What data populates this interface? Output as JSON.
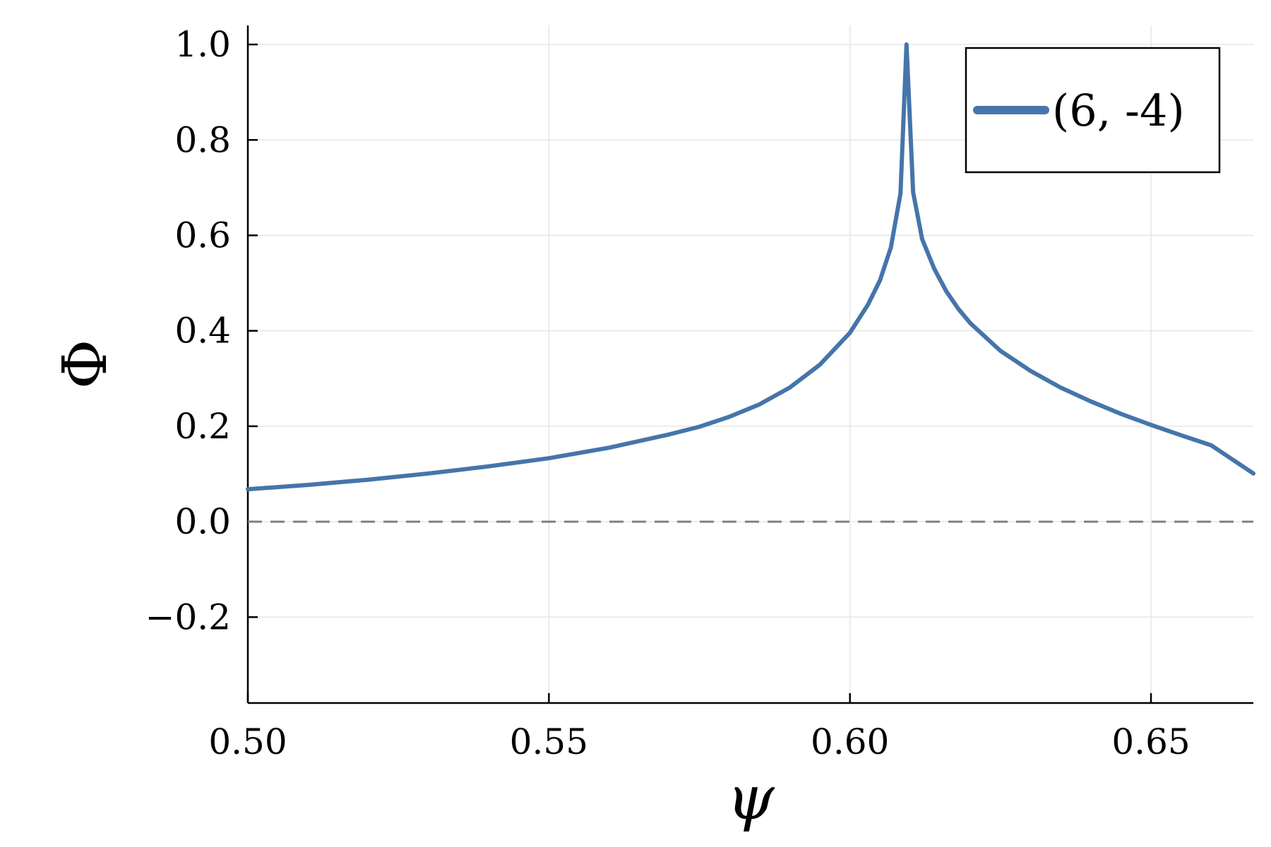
{
  "chart_data": {
    "type": "line",
    "title": "",
    "xlabel": "ψ",
    "ylabel": "Φ",
    "xlim": [
      0.5,
      0.667
    ],
    "ylim": [
      -0.38,
      1.04
    ],
    "x_ticks": [
      {
        "value": 0.5,
        "label": "0.50"
      },
      {
        "value": 0.55,
        "label": "0.55"
      },
      {
        "value": 0.6,
        "label": "0.60"
      },
      {
        "value": 0.65,
        "label": "0.65"
      }
    ],
    "y_ticks": [
      {
        "value": -0.2,
        "label": "−0.2"
      },
      {
        "value": 0.0,
        "label": "0.0"
      },
      {
        "value": 0.2,
        "label": "0.2"
      },
      {
        "value": 0.4,
        "label": "0.4"
      },
      {
        "value": 0.6,
        "label": "0.6"
      },
      {
        "value": 0.8,
        "label": "0.8"
      },
      {
        "value": 1.0,
        "label": "1.0"
      }
    ],
    "grid": true,
    "legend_position": "top-right",
    "reference_line": {
      "y": 0.0,
      "style": "dashed",
      "color": "#808080"
    },
    "series": [
      {
        "name": "(6, -4)",
        "color": "#4575aa",
        "points": [
          [
            0.5,
            0.068
          ],
          [
            0.51,
            0.077
          ],
          [
            0.52,
            0.088
          ],
          [
            0.53,
            0.101
          ],
          [
            0.54,
            0.116
          ],
          [
            0.55,
            0.133
          ],
          [
            0.56,
            0.155
          ],
          [
            0.57,
            0.183
          ],
          [
            0.575,
            0.199
          ],
          [
            0.58,
            0.22
          ],
          [
            0.585,
            0.246
          ],
          [
            0.59,
            0.281
          ],
          [
            0.595,
            0.329
          ],
          [
            0.6,
            0.396
          ],
          [
            0.603,
            0.455
          ],
          [
            0.605,
            0.506
          ],
          [
            0.6068,
            0.575
          ],
          [
            0.6084,
            0.688
          ],
          [
            0.6094,
            1.0
          ],
          [
            0.6105,
            0.69
          ],
          [
            0.612,
            0.592
          ],
          [
            0.614,
            0.53
          ],
          [
            0.616,
            0.483
          ],
          [
            0.618,
            0.446
          ],
          [
            0.62,
            0.416
          ],
          [
            0.625,
            0.358
          ],
          [
            0.63,
            0.316
          ],
          [
            0.635,
            0.281
          ],
          [
            0.64,
            0.252
          ],
          [
            0.645,
            0.226
          ],
          [
            0.65,
            0.203
          ],
          [
            0.655,
            0.181
          ],
          [
            0.66,
            0.16
          ],
          [
            0.667,
            0.101
          ]
        ]
      }
    ]
  }
}
